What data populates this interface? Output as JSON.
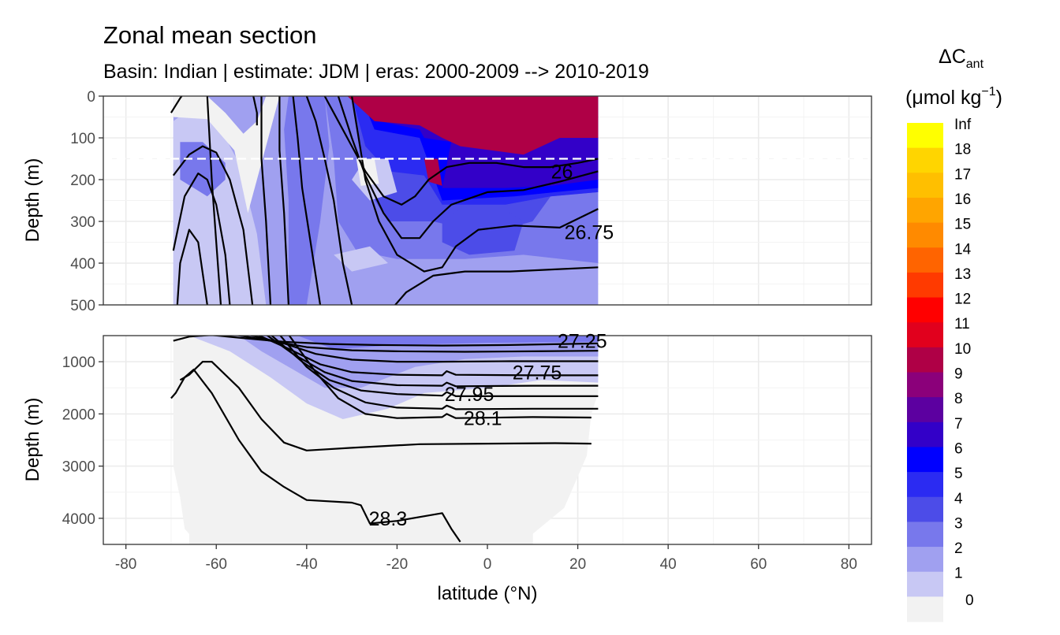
{
  "chart_data": {
    "type": "heatmap",
    "title": "Zonal mean section",
    "subtitle": "Basin: Indian | estimate: JDM  | eras: 2000-2009 --> 2010-2019",
    "xlabel": "latitude (°N)",
    "ylabel": "Depth (m)",
    "xlim": [
      -85,
      85
    ],
    "x_ticks": [
      "-80",
      "-60",
      "-40",
      "-20",
      "0",
      "20",
      "40",
      "60",
      "80"
    ],
    "x_tick_values": [
      -80,
      -60,
      -40,
      -20,
      0,
      20,
      40,
      60,
      80
    ],
    "data_lat_range": [
      -69.5,
      24.5
    ],
    "grid": true,
    "panels": [
      {
        "name": "upper",
        "ylim": [
          0,
          500
        ],
        "y_ticks": [
          "0",
          "100",
          "200",
          "300",
          "400",
          "500"
        ],
        "y_tick_values": [
          0,
          100,
          200,
          300,
          400,
          500
        ],
        "reference_line_depth": 150
      },
      {
        "name": "lower",
        "ylim": [
          500,
          4500
        ],
        "y_ticks": [
          "1000",
          "2000",
          "3000",
          "4000"
        ],
        "y_tick_values": [
          1000,
          2000,
          3000,
          4000
        ]
      }
    ],
    "legend": {
      "title_main": "ΔC",
      "title_sub": "ant",
      "unit_main": "(μmol kg",
      "unit_sup": "−1",
      "unit_close": ")",
      "placement": "right",
      "labels": [
        "Inf",
        "18",
        "17",
        "16",
        "15",
        "14",
        "13",
        "12",
        "11",
        "10",
        "9",
        "8",
        "7",
        "6",
        "5",
        "4",
        "3",
        "2",
        "1",
        "0"
      ],
      "colors": [
        "#FFFF00",
        "#FFD500",
        "#FFBF00",
        "#FFA500",
        "#FF8A00",
        "#FF6400",
        "#FF3A00",
        "#FF0000",
        "#E1001D",
        "#AF0046",
        "#8B007A",
        "#5C00A0",
        "#3300C8",
        "#0000FF",
        "#2B2BF2",
        "#4C4CE8",
        "#7878EC",
        "#A0A0F0",
        "#C8C8F4",
        "#F2F2F2"
      ]
    },
    "contour_labels": [
      {
        "text": "26",
        "lat": 16.5,
        "depth": 180
      },
      {
        "text": "26.75",
        "lat": 22.5,
        "depth": 325
      },
      {
        "text": "27.25",
        "lat": 21,
        "depth": 600
      },
      {
        "text": "27.75",
        "lat": 11,
        "depth": 1200
      },
      {
        "text": "27.95",
        "lat": -4,
        "depth": 1620
      },
      {
        "text": "28.1",
        "lat": -1,
        "depth": 2080
      },
      {
        "text": "28.3",
        "lat": -22,
        "depth": 4000
      }
    ]
  }
}
